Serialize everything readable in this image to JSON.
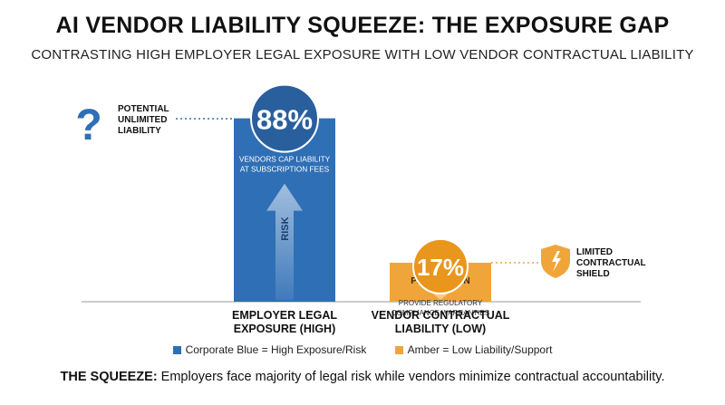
{
  "title": "AI VENDOR LIABILITY SQUEEZE: THE EXPOSURE GAP",
  "subtitle": "CONTRASTING HIGH EMPLOYER LEGAL EXPOSURE WITH LOW VENDOR CONTRACTUAL LIABILITY",
  "chart_data": {
    "type": "bar",
    "categories": [
      "EMPLOYER LEGAL EXPOSURE (HIGH)",
      "VENDOR CONTRACTUAL LIABILITY (LOW)"
    ],
    "category_lines": [
      [
        "EMPLOYER LEGAL",
        "EXPOSURE (HIGH)"
      ],
      [
        "VENDOR CONTRACTUAL",
        "LIABILITY (LOW)"
      ]
    ],
    "values": [
      88,
      17
    ],
    "value_labels": [
      "88%",
      "17%"
    ],
    "bar_notes": [
      [
        "VENDORS CAP LIABILITY",
        "AT SUBSCRIPTION FEES"
      ],
      [
        "PROVIDE REGULATORY",
        "COMPLIANCE WARRANTIES"
      ]
    ],
    "arrow_labels": [
      "RISK",
      "PROTECTION"
    ],
    "colors": {
      "blue": "#2f6fb5",
      "blue_circle": "#2a5f9e",
      "amber": "#f0a53a",
      "amber_light": "#f7cf8f",
      "amber_circle": "#e8961c",
      "axis": "#999999"
    },
    "xlabel": "",
    "ylabel": "",
    "ylim": [
      0,
      100
    ],
    "grid": false
  },
  "callouts": {
    "left": {
      "icon": "question-mark-icon",
      "lines": [
        "POTENTIAL",
        "UNLIMITED",
        "LIABILITY"
      ]
    },
    "right": {
      "icon": "shield-icon",
      "lines": [
        "LIMITED",
        "CONTRACTUAL",
        "SHIELD"
      ]
    }
  },
  "legend": [
    {
      "label": "Corporate Blue = High Exposure/Risk",
      "color": "#2f6fb5"
    },
    {
      "label": "Amber = Low Liability/Support",
      "color": "#f0a53a"
    }
  ],
  "footer": {
    "bold": "THE SQUEEZE:",
    "text": " Employers face majority of legal risk while vendors minimize contractual accountability."
  }
}
